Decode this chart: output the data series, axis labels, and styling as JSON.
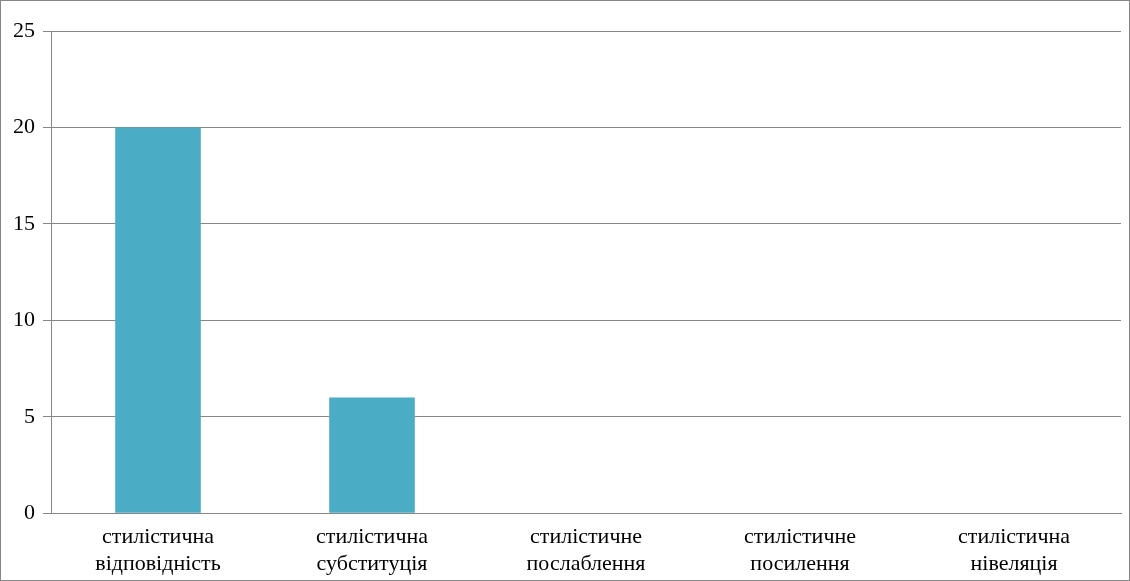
{
  "chart_data": {
    "type": "bar",
    "categories": [
      "стилістична відповідність",
      "стилістична субституція",
      "стилістичне послаблення",
      "стилістичне посилення",
      "стилістична нівеляція"
    ],
    "values": [
      20,
      6,
      0,
      0,
      0
    ],
    "color": "#4bacc6",
    "ylim": [
      0,
      25
    ],
    "yticks": [
      0,
      5,
      10,
      15,
      20,
      25
    ],
    "grid": "y",
    "legend": false
  }
}
